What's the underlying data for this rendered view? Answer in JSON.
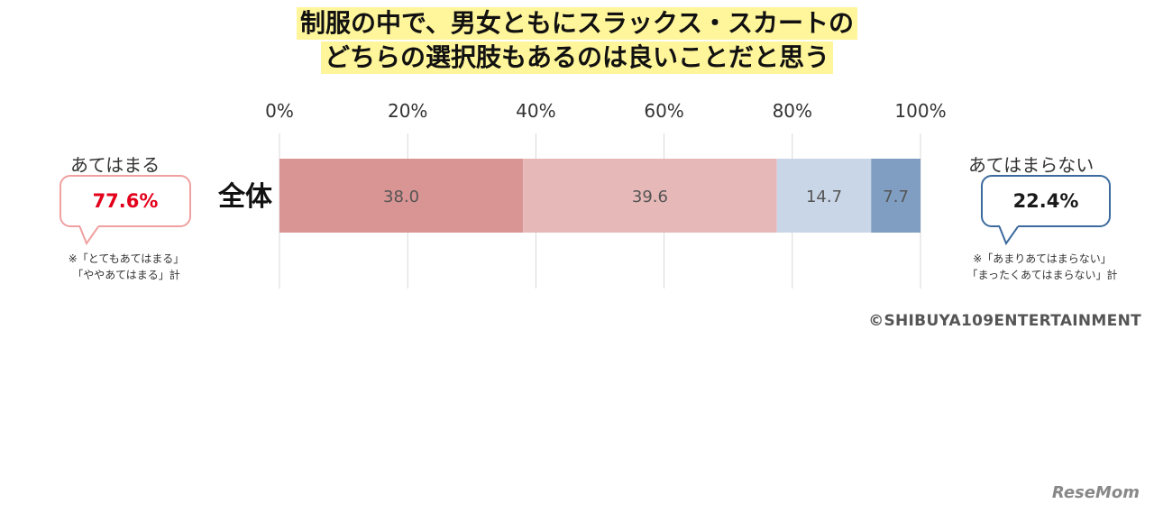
{
  "title": {
    "line1": "制服の中で、男女ともにスラックス・スカートの",
    "line2": "どちらの選択肢もあるのは良いことだと思う"
  },
  "chart_data": {
    "type": "bar",
    "orientation": "horizontal-stacked",
    "categories": [
      "全体"
    ],
    "series": [
      {
        "values": [
          38.0
        ],
        "color": "#d99594"
      },
      {
        "values": [
          39.6
        ],
        "color": "#e6b8b7"
      },
      {
        "values": [
          14.7
        ],
        "color": "#c9d6e8"
      },
      {
        "values": [
          7.7
        ],
        "color": "#7f9ec1"
      }
    ],
    "x_ticks": [
      "0%",
      "20%",
      "40%",
      "60%",
      "80%",
      "100%"
    ],
    "xlim": [
      0,
      100
    ],
    "grid": true
  },
  "left_summary": {
    "label": "あてはまる",
    "value": "77.6%",
    "value_color": "#e3001b",
    "border_color": "#f0a0a0",
    "note_line1": "※「とてもあてはまる」",
    "note_line2": "「ややあてはまる」計"
  },
  "right_summary": {
    "label": "あてはまらない",
    "value": "22.4%",
    "value_color": "#1a1a1a",
    "border_color": "#3c6a9e",
    "note_line1": "※「あまりあてはまらない」",
    "note_line2": "「まったくあてはまらない」計"
  },
  "copyright": "©SHIBUYA109ENTERTAINMENT",
  "logo": "ReseMom"
}
